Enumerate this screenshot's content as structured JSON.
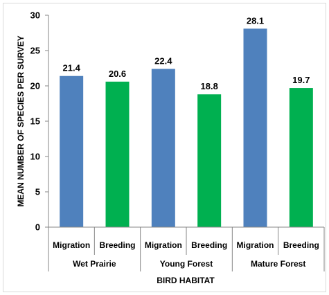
{
  "chart_data": {
    "type": "bar",
    "title": "",
    "xlabel": "BIRD HABITAT",
    "ylabel": "MEAN NUMBER OF SPECIES PER SURVEY",
    "ylim": [
      0,
      30
    ],
    "yticks": [
      0,
      5,
      10,
      15,
      20,
      25,
      30
    ],
    "grid": false,
    "legend": "none",
    "groups": [
      "Wet Prairie",
      "Young Forest",
      "Mature Forest"
    ],
    "categories": [
      "Migration",
      "Breeding",
      "Migration",
      "Breeding",
      "Migration",
      "Breeding"
    ],
    "values": [
      21.4,
      20.6,
      22.4,
      18.8,
      28.1,
      19.7
    ],
    "data_labels": [
      "21.4",
      "20.6",
      "22.4",
      "18.8",
      "28.1",
      "19.7"
    ],
    "colors": {
      "Migration": "#4F81BD",
      "Breeding": "#00B050",
      "axis": "#868686",
      "border": "#D9D9D9"
    }
  }
}
